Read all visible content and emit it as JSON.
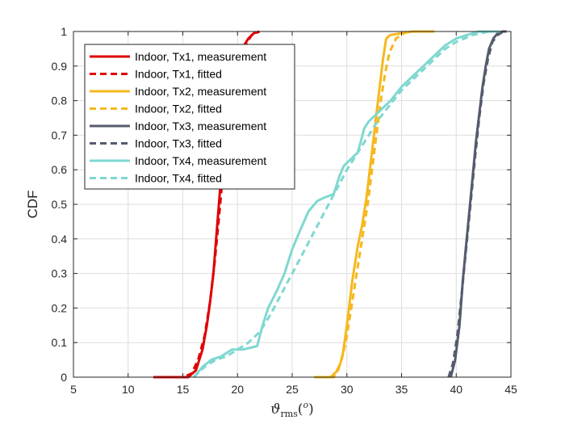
{
  "chart_data": {
    "type": "line",
    "title": "",
    "xlabel": {
      "main": "ϑ",
      "sub": "rms",
      "open": "(",
      "sup": "o",
      "close": ")"
    },
    "ylabel": "CDF",
    "xlim": [
      5,
      45
    ],
    "ylim": [
      0,
      1
    ],
    "xticks": [
      5,
      10,
      15,
      20,
      25,
      30,
      35,
      40,
      45
    ],
    "yticks": [
      0,
      0.1,
      0.2,
      0.3,
      0.4,
      0.5,
      0.6,
      0.7,
      0.8,
      0.9,
      1
    ],
    "grid": true,
    "legend_position": "top-left",
    "series": [
      {
        "name": "Indoor, Tx1, measurement",
        "color": "#e00000",
        "style": "solid",
        "x": [
          12.3,
          14.0,
          15.5,
          16.2,
          16.8,
          17.2,
          17.5,
          17.8,
          18.0,
          18.3,
          18.6,
          18.9,
          19.2,
          19.6,
          20.0,
          20.4,
          21.0,
          21.5,
          22.0
        ],
        "y": [
          0,
          0,
          0,
          0.02,
          0.08,
          0.15,
          0.22,
          0.3,
          0.38,
          0.5,
          0.62,
          0.72,
          0.8,
          0.87,
          0.92,
          0.95,
          0.98,
          0.995,
          1.0
        ]
      },
      {
        "name": "Indoor, Tx1, fitted",
        "color": "#e00000",
        "style": "dashed",
        "x": [
          12.5,
          15.0,
          15.8,
          16.4,
          17.0,
          17.5,
          17.9,
          18.3,
          18.7,
          19.1,
          19.6,
          20.1,
          20.7,
          21.3,
          22.0
        ],
        "y": [
          0,
          0,
          0.01,
          0.05,
          0.12,
          0.22,
          0.33,
          0.46,
          0.6,
          0.72,
          0.83,
          0.91,
          0.96,
          0.99,
          1.0
        ]
      },
      {
        "name": "Indoor, Tx2, measurement",
        "color": "#f5b81e",
        "style": "solid",
        "x": [
          27.0,
          28.5,
          29.2,
          29.6,
          30.0,
          30.5,
          31.0,
          31.4,
          31.8,
          32.1,
          32.4,
          32.7,
          33.0,
          33.3,
          33.6,
          34.0,
          35.0,
          36.0,
          38.0
        ],
        "y": [
          0,
          0,
          0.02,
          0.06,
          0.15,
          0.28,
          0.38,
          0.44,
          0.52,
          0.6,
          0.68,
          0.76,
          0.84,
          0.92,
          0.98,
          0.99,
          0.995,
          1.0,
          1.0
        ]
      },
      {
        "name": "Indoor, Tx2, fitted",
        "color": "#f5b81e",
        "style": "dashed",
        "x": [
          27.5,
          28.8,
          29.4,
          29.9,
          30.4,
          30.9,
          31.4,
          31.9,
          32.3,
          32.7,
          33.1,
          33.5,
          33.9,
          34.5,
          35.5
        ],
        "y": [
          0,
          0,
          0.04,
          0.1,
          0.2,
          0.3,
          0.4,
          0.5,
          0.6,
          0.7,
          0.8,
          0.88,
          0.94,
          0.98,
          1.0
        ]
      },
      {
        "name": "Indoor, Tx3, measurement",
        "color": "#555b6e",
        "style": "solid",
        "x": [
          39.5,
          39.9,
          40.3,
          40.6,
          40.9,
          41.2,
          41.5,
          41.8,
          42.1,
          42.4,
          42.7,
          43.0,
          43.4,
          43.8,
          44.2,
          44.6
        ],
        "y": [
          0,
          0.05,
          0.15,
          0.28,
          0.38,
          0.48,
          0.58,
          0.68,
          0.76,
          0.84,
          0.9,
          0.95,
          0.98,
          0.995,
          1.0,
          1.0
        ]
      },
      {
        "name": "Indoor, Tx3, fitted",
        "color": "#555b6e",
        "style": "dashed",
        "x": [
          39.3,
          39.7,
          40.1,
          40.5,
          40.9,
          41.3,
          41.7,
          42.1,
          42.5,
          42.9,
          43.3,
          43.8,
          44.3
        ],
        "y": [
          0,
          0.04,
          0.12,
          0.24,
          0.37,
          0.5,
          0.63,
          0.75,
          0.85,
          0.92,
          0.97,
          0.99,
          1.0
        ]
      },
      {
        "name": "Indoor, Tx4, measurement",
        "color": "#7fd8d0",
        "style": "solid",
        "x": [
          16.0,
          16.8,
          17.6,
          18.5,
          19.5,
          20.5,
          21.8,
          22.3,
          22.8,
          23.6,
          24.3,
          25.0,
          25.8,
          26.5,
          27.3,
          28.0,
          28.8,
          29.3,
          29.7,
          30.0,
          31.0,
          31.6,
          32.0,
          33.0,
          34.0,
          35.0,
          36.0,
          37.0,
          38.0,
          39.0,
          40.0,
          42.0,
          44.0
        ],
        "y": [
          0,
          0.03,
          0.05,
          0.06,
          0.08,
          0.08,
          0.09,
          0.15,
          0.2,
          0.25,
          0.3,
          0.37,
          0.43,
          0.48,
          0.51,
          0.52,
          0.53,
          0.58,
          0.61,
          0.62,
          0.65,
          0.72,
          0.74,
          0.77,
          0.8,
          0.84,
          0.87,
          0.9,
          0.93,
          0.96,
          0.98,
          1.0,
          1.0
        ]
      },
      {
        "name": "Indoor, Tx4, fitted",
        "color": "#7fd8d0",
        "style": "dashed",
        "x": [
          16.0,
          17.0,
          18.0,
          19.0,
          20.0,
          21.0,
          22.0,
          23.0,
          24.0,
          25.0,
          26.0,
          27.0,
          28.0,
          29.0,
          30.0,
          31.0,
          32.0,
          33.0,
          34.0,
          35.0,
          36.0,
          37.0,
          38.0,
          39.0,
          40.0,
          41.5,
          43.0
        ],
        "y": [
          0,
          0.03,
          0.05,
          0.06,
          0.08,
          0.1,
          0.13,
          0.18,
          0.24,
          0.3,
          0.36,
          0.42,
          0.48,
          0.54,
          0.6,
          0.65,
          0.7,
          0.75,
          0.79,
          0.83,
          0.86,
          0.89,
          0.92,
          0.95,
          0.97,
          0.99,
          1.0
        ]
      }
    ]
  }
}
